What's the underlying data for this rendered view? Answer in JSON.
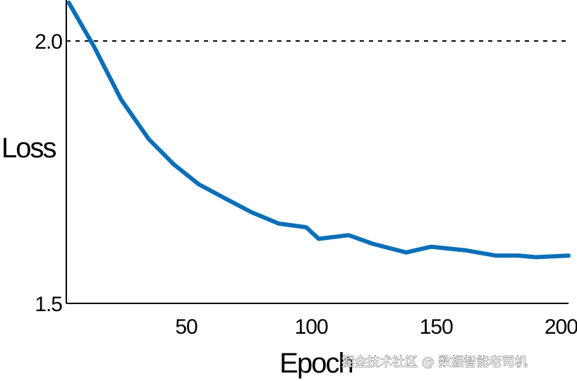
{
  "chart_data": {
    "type": "line",
    "xlabel": "Epoch",
    "ylabel": "Loss",
    "xlim": [
      2,
      203
    ],
    "ylim": [
      1.5,
      2.07
    ],
    "xticks": [
      50,
      100,
      150,
      200
    ],
    "xtick_labels": [
      "50",
      "100",
      "150",
      "200"
    ],
    "yticks": [
      1.5,
      2.0
    ],
    "ytick_labels": [
      "1.5",
      "2.0"
    ],
    "reference_line": {
      "y": 2.0,
      "style": "dashed",
      "color": "#000000"
    },
    "grid": false,
    "series": [
      {
        "color": "#0b6fb8",
        "x": [
          3,
          13,
          24,
          35,
          45,
          55,
          66,
          76,
          87,
          98,
          103,
          115,
          125,
          138,
          148,
          162,
          174,
          183,
          190,
          203
        ],
        "y": [
          2.073,
          1.99,
          1.888,
          1.813,
          1.765,
          1.727,
          1.699,
          1.674,
          1.652,
          1.645,
          1.623,
          1.63,
          1.613,
          1.597,
          1.608,
          1.601,
          1.591,
          1.591,
          1.588,
          1.591
        ]
      }
    ]
  },
  "watermark": {
    "text": "掘金技术社区 @ 数据智能老司机"
  }
}
